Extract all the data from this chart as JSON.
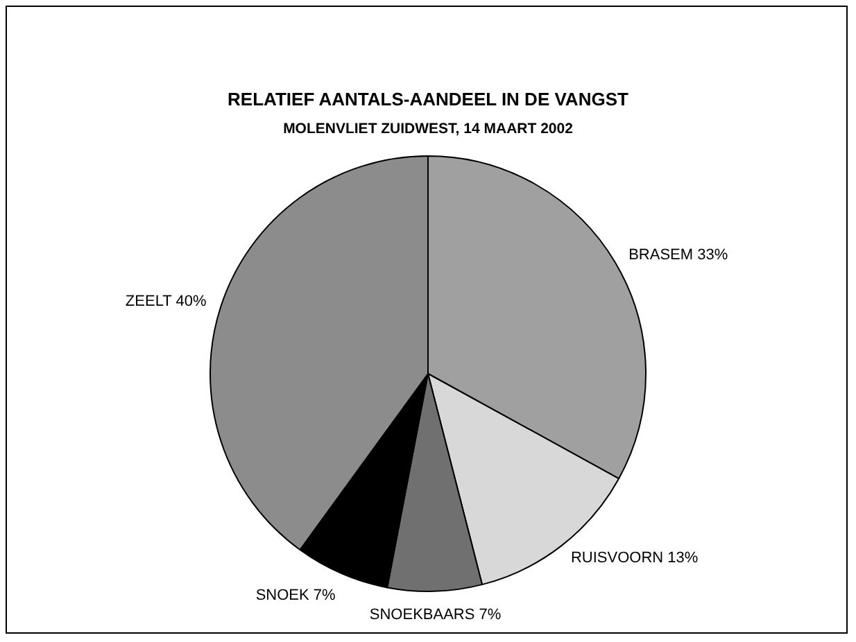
{
  "chart_data": {
    "type": "pie",
    "title": "RELATIEF AANTALS-AANDEEL IN DE VANGST",
    "subtitle": "MOLENVLIET ZUIDWEST, 14 MAART 2002",
    "categories": [
      "BRASEM",
      "RUISVOORN",
      "SNOEKBAARS",
      "SNOEK",
      "ZEELT"
    ],
    "values": [
      33,
      13,
      7,
      7,
      40
    ],
    "colors": [
      "#a0a0a0",
      "#d8d8d8",
      "#707070",
      "#000000",
      "#8c8c8c"
    ],
    "value_labels": [
      "33%",
      "13%",
      "7%",
      "7%",
      "40%"
    ],
    "legend": false
  }
}
